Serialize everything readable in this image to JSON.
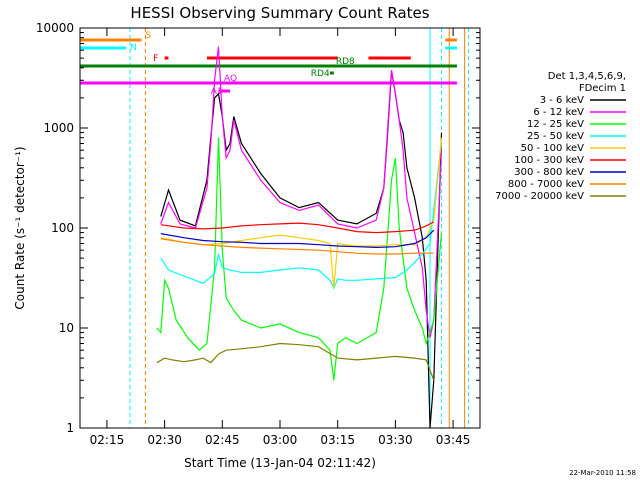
{
  "chart_data": {
    "type": "line",
    "title": "HESSI Observing Summary Count Rates",
    "xlabel": "Start Time (13-Jan-04 02:11:42)",
    "ylabel": "Count Rate (s⁻¹ detector⁻¹)",
    "y_scale": "log",
    "ylim": [
      1,
      10000
    ],
    "xlim": [
      "02:08",
      "03:52"
    ],
    "x_ticks": [
      "02:15",
      "02:30",
      "02:45",
      "03:00",
      "03:15",
      "03:30",
      "03:45"
    ],
    "y_ticks": [
      "1",
      "10",
      "100",
      "1000",
      "10000"
    ],
    "legend_header": [
      "Det 1,3,4,5,6,9,",
      "FDecim 1"
    ],
    "legend_position": "right",
    "series": [
      {
        "name": "3 - 6 keV",
        "color": "#000000",
        "x": [
          "02:29",
          "02:31",
          "02:34",
          "02:38",
          "02:41",
          "02:42",
          "02:43",
          "02:44",
          "02:45",
          "02:46",
          "02:47",
          "02:48",
          "02:50",
          "02:55",
          "03:00",
          "03:05",
          "03:10",
          "03:15",
          "03:20",
          "03:25",
          "03:27",
          "03:28",
          "03:29",
          "03:30",
          "03:31",
          "03:32",
          "03:33",
          "03:35",
          "03:37",
          "03:38",
          "03:39",
          "03:40",
          "03:42"
        ],
        "y": [
          130,
          240,
          120,
          105,
          300,
          800,
          2000,
          2200,
          1300,
          600,
          700,
          1300,
          700,
          350,
          200,
          160,
          180,
          120,
          110,
          140,
          250,
          900,
          3700,
          2200,
          1200,
          900,
          400,
          200,
          80,
          30,
          1,
          3,
          900
        ]
      },
      {
        "name": "6 - 12 keV",
        "color": "#ff00ff",
        "x": [
          "02:29",
          "02:31",
          "02:34",
          "02:38",
          "02:41",
          "02:42",
          "02:43",
          "02:44",
          "02:45",
          "02:46",
          "02:47",
          "02:48",
          "02:50",
          "02:55",
          "03:00",
          "03:05",
          "03:10",
          "03:15",
          "03:20",
          "03:25",
          "03:27",
          "03:28",
          "03:29",
          "03:30",
          "03:31",
          "03:32",
          "03:33",
          "03:35",
          "03:37",
          "03:38",
          "03:39",
          "03:40",
          "03:42"
        ],
        "y": [
          110,
          180,
          110,
          100,
          250,
          700,
          3000,
          6500,
          1300,
          500,
          600,
          1200,
          600,
          300,
          180,
          150,
          170,
          110,
          100,
          120,
          250,
          1000,
          3800,
          2200,
          1200,
          600,
          200,
          90,
          40,
          15,
          8,
          12,
          600
        ]
      },
      {
        "name": "12 - 25 keV",
        "color": "#00ff00",
        "x": [
          "02:28",
          "02:29",
          "02:30",
          "02:31",
          "02:33",
          "02:36",
          "02:39",
          "02:41",
          "02:43",
          "02:44",
          "02:45",
          "02:46",
          "02:48",
          "02:50",
          "02:55",
          "03:00",
          "03:05",
          "03:10",
          "03:13",
          "03:14",
          "03:15",
          "03:17",
          "03:20",
          "03:25",
          "03:27",
          "03:29",
          "03:30",
          "03:31",
          "03:33",
          "03:35",
          "03:37",
          "03:38",
          "03:40",
          "03:42"
        ],
        "y": [
          10,
          9,
          30,
          25,
          12,
          8,
          6,
          7,
          40,
          800,
          60,
          20,
          15,
          12,
          10,
          11,
          9,
          8,
          6,
          3,
          7,
          8,
          7,
          9,
          25,
          300,
          500,
          100,
          25,
          15,
          10,
          7,
          12,
          90
        ]
      },
      {
        "name": "25 - 50 keV",
        "color": "#00ffff",
        "x": [
          "02:29",
          "02:31",
          "02:35",
          "02:40",
          "02:43",
          "02:44",
          "02:45",
          "02:47",
          "02:50",
          "02:55",
          "03:00",
          "03:05",
          "03:10",
          "03:13",
          "03:14",
          "03:15",
          "03:17",
          "03:20",
          "03:25",
          "03:30",
          "03:33",
          "03:35",
          "03:37",
          "03:39",
          "03:42"
        ],
        "y": [
          50,
          38,
          33,
          28,
          35,
          55,
          40,
          38,
          36,
          36,
          38,
          40,
          38,
          30,
          25,
          31,
          30,
          30,
          31,
          32,
          38,
          45,
          55,
          70,
          750
        ]
      },
      {
        "name": "50 - 100 keV",
        "color": "#ffcc00",
        "x": [
          "02:29",
          "02:35",
          "02:40",
          "02:45",
          "02:50",
          "02:55",
          "03:00",
          "03:05",
          "03:10",
          "03:13",
          "03:14",
          "03:15",
          "03:17",
          "03:20",
          "03:25",
          "03:30",
          "03:35",
          "03:38",
          "03:40",
          "03:42"
        ],
        "y": [
          80,
          72,
          68,
          70,
          75,
          80,
          85,
          80,
          75,
          70,
          25,
          70,
          68,
          66,
          66,
          68,
          68,
          80,
          120,
          800
        ]
      },
      {
        "name": "100 - 300 keV",
        "color": "#ff0000",
        "x": [
          "02:29",
          "02:35",
          "02:40",
          "02:45",
          "02:50",
          "02:55",
          "03:00",
          "03:05",
          "03:10",
          "03:15",
          "03:20",
          "03:25",
          "03:30",
          "03:35",
          "03:38",
          "03:40"
        ],
        "y": [
          108,
          100,
          98,
          100,
          105,
          108,
          110,
          112,
          108,
          100,
          92,
          90,
          92,
          95,
          105,
          115
        ]
      },
      {
        "name": "300 - 800 keV",
        "color": "#0000cc",
        "x": [
          "02:29",
          "02:35",
          "02:40",
          "02:45",
          "02:50",
          "02:55",
          "03:00",
          "03:05",
          "03:10",
          "03:15",
          "03:20",
          "03:25",
          "03:30",
          "03:35",
          "03:38",
          "03:40"
        ],
        "y": [
          88,
          80,
          75,
          73,
          72,
          70,
          70,
          70,
          68,
          66,
          65,
          64,
          65,
          70,
          80,
          95
        ]
      },
      {
        "name": "800 - 7000 keV",
        "color": "#ff8000",
        "x": [
          "02:29",
          "02:35",
          "02:40",
          "02:45",
          "02:50",
          "02:55",
          "03:00",
          "03:05",
          "03:10",
          "03:15",
          "03:20",
          "03:25",
          "03:30",
          "03:35",
          "03:38",
          "03:40"
        ],
        "y": [
          78,
          72,
          68,
          66,
          64,
          63,
          62,
          61,
          60,
          58,
          56,
          55,
          55,
          56,
          56,
          56
        ]
      },
      {
        "name": "7000 - 20000 keV",
        "color": "#808000",
        "x": [
          "02:28",
          "02:30",
          "02:32",
          "02:35",
          "02:38",
          "02:40",
          "02:42",
          "02:44",
          "02:46",
          "02:50",
          "02:55",
          "03:00",
          "03:05",
          "03:10",
          "03:15",
          "03:20",
          "03:25",
          "03:30",
          "03:35",
          "03:38",
          "03:40"
        ],
        "y": [
          4.5,
          5,
          4.8,
          4.6,
          4.8,
          5,
          4.5,
          5.5,
          6,
          6.2,
          6.5,
          7,
          6.8,
          6.5,
          5,
          4.8,
          5,
          5.2,
          5,
          4.8,
          3
        ]
      }
    ],
    "flags": [
      {
        "label": "S",
        "color": "#ff8000",
        "segments": [
          [
            "02:08",
            "02:24"
          ],
          [
            "03:43",
            "03:46"
          ]
        ]
      },
      {
        "label": "N",
        "color": "#00ffff",
        "segments": [
          [
            "02:08",
            "02:20"
          ],
          [
            "03:43",
            "03:46"
          ]
        ]
      },
      {
        "label": "F",
        "color": "#ff0000",
        "segments": [
          [
            "02:30",
            "02:31"
          ],
          [
            "02:41",
            "03:15"
          ],
          [
            "03:23",
            "03:34"
          ]
        ]
      },
      {
        "label": "RD8",
        "color": "#008000",
        "segments": [
          [
            "02:08",
            "03:46"
          ]
        ]
      },
      {
        "label": "RD4",
        "color": "#008000",
        "segments": [
          [
            "03:13",
            "03:14"
          ]
        ]
      },
      {
        "label": "AQ",
        "color": "#ff00ff",
        "segments": [
          [
            "02:08",
            "03:46"
          ]
        ]
      },
      {
        "label": "A1",
        "color": "#ff00ff",
        "segments": [
          [
            "02:44",
            "02:47"
          ]
        ]
      }
    ],
    "vlines": [
      {
        "time": "02:08",
        "color": "#00ffff",
        "style": "solid"
      },
      {
        "time": "02:21",
        "color": "#00ffff",
        "style": "dashed"
      },
      {
        "time": "02:25",
        "color": "#ff8000",
        "style": "dashed"
      },
      {
        "time": "03:39",
        "color": "#00ffff",
        "style": "solid"
      },
      {
        "time": "03:42",
        "color": "#00ffff",
        "style": "dashed"
      },
      {
        "time": "03:44",
        "color": "#ff8000",
        "style": "solid"
      },
      {
        "time": "03:48",
        "color": "#ff8000",
        "style": "solid"
      },
      {
        "time": "03:49",
        "color": "#00ffff",
        "style": "dashed"
      }
    ],
    "grid": false
  },
  "footer_timestamp": "22-Mar-2010 11:58"
}
